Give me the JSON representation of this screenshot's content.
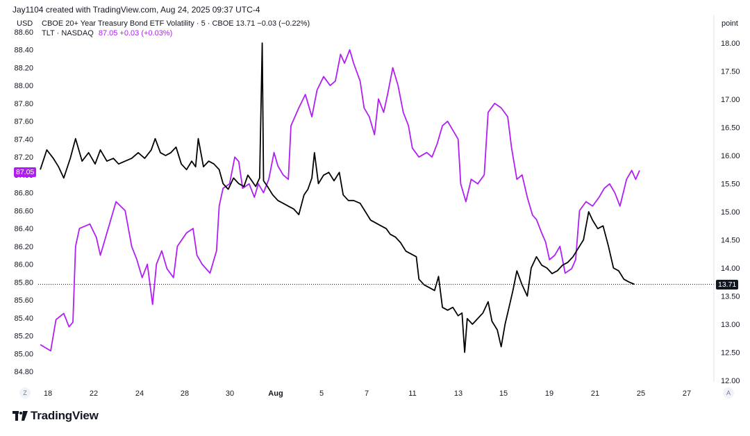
{
  "header": {
    "credit": "Jay1104 created with TradingView.com, Aug 24, 2025 09:37 UTC-4"
  },
  "legend": {
    "series1": "CBOE 20+ Year Treasury Bond ETF Volatility · 5 · CBOE  13.71  −0.03 (−0.22%)",
    "series2_name": "TLT · NASDAQ",
    "series2_value": "87.05  +0.03 (+0.03%)"
  },
  "axes": {
    "left_unit": "USD",
    "right_unit": "point",
    "left_badge": "87.05",
    "right_badge": "13.71"
  },
  "buttons": {
    "z_label": "Z",
    "a_label": "A"
  },
  "brand": {
    "name": "TradingView"
  },
  "colors": {
    "tlt": "#b01ef3",
    "vol": "#000000",
    "grid_text": "#131722"
  },
  "chart_data": {
    "type": "line",
    "x_tick_labels": [
      "18",
      "22",
      "24",
      "28",
      "30",
      "Aug",
      "5",
      "7",
      "11",
      "13",
      "15",
      "19",
      "21",
      "25",
      "27"
    ],
    "left_axis": {
      "label": "USD",
      "ticks": [
        "88.60",
        "88.40",
        "88.20",
        "88.00",
        "87.80",
        "87.60",
        "87.40",
        "87.20",
        "87.00",
        "86.80",
        "86.60",
        "86.40",
        "86.20",
        "86.00",
        "85.80",
        "85.60",
        "85.40",
        "85.20",
        "85.00",
        "84.80"
      ],
      "range": [
        84.8,
        88.6
      ]
    },
    "right_axis": {
      "label": "point",
      "ticks": [
        "18.00",
        "17.50",
        "17.00",
        "16.50",
        "16.00",
        "15.50",
        "15.00",
        "14.50",
        "14.00",
        "13.50",
        "13.00",
        "12.50",
        "12.00"
      ],
      "range": [
        12.0,
        18.0
      ]
    },
    "series": [
      {
        "name": "TLT · NASDAQ",
        "axis": "left",
        "color": "#b01ef3",
        "points": [
          [
            0,
            85.1
          ],
          [
            0.8,
            85.03
          ],
          [
            1.2,
            85.38
          ],
          [
            1.8,
            85.45
          ],
          [
            2.2,
            85.3
          ],
          [
            2.5,
            85.35
          ],
          [
            2.7,
            86.2
          ],
          [
            3.0,
            86.4
          ],
          [
            3.8,
            86.45
          ],
          [
            4.3,
            86.3
          ],
          [
            4.6,
            86.1
          ],
          [
            5.2,
            86.4
          ],
          [
            5.8,
            86.7
          ],
          [
            6.5,
            86.6
          ],
          [
            7.0,
            86.2
          ],
          [
            7.4,
            86.05
          ],
          [
            7.8,
            85.85
          ],
          [
            8.2,
            86.0
          ],
          [
            8.6,
            85.55
          ],
          [
            8.9,
            86.0
          ],
          [
            9.3,
            86.15
          ],
          [
            9.7,
            85.95
          ],
          [
            10.2,
            85.85
          ],
          [
            10.5,
            86.2
          ],
          [
            11.2,
            86.35
          ],
          [
            11.7,
            86.4
          ],
          [
            12.0,
            86.1
          ],
          [
            12.4,
            86.0
          ],
          [
            13.0,
            85.9
          ],
          [
            13.5,
            86.15
          ],
          [
            13.7,
            86.65
          ],
          [
            14.0,
            86.85
          ],
          [
            14.5,
            86.9
          ],
          [
            14.9,
            87.2
          ],
          [
            15.2,
            87.15
          ],
          [
            15.5,
            86.85
          ],
          [
            16.0,
            86.9
          ],
          [
            16.4,
            86.75
          ],
          [
            16.7,
            86.9
          ],
          [
            17.1,
            86.8
          ],
          [
            17.5,
            86.95
          ],
          [
            17.9,
            87.25
          ],
          [
            18.2,
            87.1
          ],
          [
            18.6,
            87.0
          ],
          [
            19.0,
            86.95
          ],
          [
            19.2,
            87.55
          ],
          [
            19.8,
            87.75
          ],
          [
            20.3,
            87.9
          ],
          [
            20.8,
            87.65
          ],
          [
            21.2,
            87.95
          ],
          [
            21.7,
            88.1
          ],
          [
            22.2,
            88.0
          ],
          [
            22.6,
            88.05
          ],
          [
            23.0,
            88.35
          ],
          [
            23.3,
            88.25
          ],
          [
            23.7,
            88.4
          ],
          [
            24.0,
            88.25
          ],
          [
            24.5,
            88.05
          ],
          [
            24.8,
            87.75
          ],
          [
            25.2,
            87.65
          ],
          [
            25.6,
            87.45
          ],
          [
            25.9,
            87.85
          ],
          [
            26.3,
            87.7
          ],
          [
            26.6,
            87.9
          ],
          [
            27.0,
            88.2
          ],
          [
            27.4,
            88.0
          ],
          [
            27.8,
            87.7
          ],
          [
            28.2,
            87.55
          ],
          [
            28.5,
            87.3
          ],
          [
            29.0,
            87.2
          ],
          [
            29.6,
            87.25
          ],
          [
            30.0,
            87.2
          ],
          [
            30.4,
            87.35
          ],
          [
            30.8,
            87.55
          ],
          [
            31.2,
            87.6
          ],
          [
            31.6,
            87.5
          ],
          [
            32.0,
            87.4
          ],
          [
            32.2,
            86.9
          ],
          [
            32.6,
            86.7
          ],
          [
            33.0,
            86.95
          ],
          [
            33.5,
            86.9
          ],
          [
            34.0,
            87.0
          ],
          [
            34.3,
            87.7
          ],
          [
            34.8,
            87.8
          ],
          [
            35.3,
            87.75
          ],
          [
            35.8,
            87.65
          ],
          [
            36.1,
            87.3
          ],
          [
            36.5,
            86.95
          ],
          [
            36.9,
            87.0
          ],
          [
            37.3,
            86.75
          ],
          [
            37.7,
            86.55
          ],
          [
            38.0,
            86.5
          ],
          [
            38.4,
            86.35
          ],
          [
            38.7,
            86.25
          ],
          [
            39.0,
            86.05
          ],
          [
            39.4,
            86.1
          ],
          [
            39.8,
            86.2
          ],
          [
            40.2,
            85.9
          ],
          [
            40.7,
            85.95
          ],
          [
            41.0,
            86.05
          ],
          [
            41.3,
            86.6
          ],
          [
            41.8,
            86.7
          ],
          [
            42.3,
            86.65
          ],
          [
            42.8,
            86.75
          ],
          [
            43.2,
            86.85
          ],
          [
            43.6,
            86.9
          ],
          [
            44.0,
            86.8
          ],
          [
            44.4,
            86.65
          ],
          [
            44.9,
            86.95
          ],
          [
            45.3,
            87.05
          ],
          [
            45.6,
            86.95
          ],
          [
            45.9,
            87.05
          ]
        ]
      },
      {
        "name": "CBOE 20+ Year Treasury Bond ETF Volatility",
        "axis": "right",
        "color": "#000000",
        "points": [
          [
            0,
            15.75
          ],
          [
            0.5,
            16.1
          ],
          [
            1.0,
            15.95
          ],
          [
            1.4,
            15.8
          ],
          [
            1.8,
            15.6
          ],
          [
            2.3,
            15.95
          ],
          [
            2.7,
            16.3
          ],
          [
            3.2,
            15.9
          ],
          [
            3.7,
            16.05
          ],
          [
            4.2,
            15.85
          ],
          [
            4.6,
            16.1
          ],
          [
            5.1,
            15.9
          ],
          [
            5.6,
            15.95
          ],
          [
            6.0,
            15.85
          ],
          [
            6.5,
            15.9
          ],
          [
            7.0,
            15.95
          ],
          [
            7.5,
            16.05
          ],
          [
            8.0,
            15.95
          ],
          [
            8.5,
            16.1
          ],
          [
            8.8,
            16.3
          ],
          [
            9.2,
            16.05
          ],
          [
            9.6,
            16.0
          ],
          [
            10.0,
            16.05
          ],
          [
            10.4,
            16.15
          ],
          [
            10.8,
            15.85
          ],
          [
            11.2,
            15.75
          ],
          [
            11.6,
            15.9
          ],
          [
            11.9,
            15.8
          ],
          [
            12.1,
            16.3
          ],
          [
            12.5,
            15.8
          ],
          [
            12.9,
            15.9
          ],
          [
            13.3,
            15.85
          ],
          [
            13.7,
            15.75
          ],
          [
            14.0,
            15.5
          ],
          [
            14.4,
            15.4
          ],
          [
            14.8,
            15.6
          ],
          [
            15.2,
            15.5
          ],
          [
            15.6,
            15.45
          ],
          [
            15.9,
            15.65
          ],
          [
            16.2,
            15.55
          ],
          [
            16.5,
            15.45
          ],
          [
            16.8,
            15.6
          ],
          [
            17.0,
            18.0
          ],
          [
            17.1,
            15.55
          ],
          [
            17.4,
            15.45
          ],
          [
            17.8,
            15.3
          ],
          [
            18.2,
            15.2
          ],
          [
            18.6,
            15.15
          ],
          [
            19.0,
            15.1
          ],
          [
            19.4,
            15.05
          ],
          [
            19.8,
            14.95
          ],
          [
            20.2,
            15.3
          ],
          [
            20.5,
            15.4
          ],
          [
            20.8,
            15.6
          ],
          [
            21.0,
            16.05
          ],
          [
            21.3,
            15.5
          ],
          [
            21.7,
            15.65
          ],
          [
            22.1,
            15.7
          ],
          [
            22.5,
            15.55
          ],
          [
            22.9,
            15.7
          ],
          [
            23.2,
            15.3
          ],
          [
            23.6,
            15.2
          ],
          [
            24.0,
            15.2
          ],
          [
            24.5,
            15.15
          ],
          [
            24.9,
            15.0
          ],
          [
            25.3,
            14.85
          ],
          [
            25.7,
            14.8
          ],
          [
            26.1,
            14.75
          ],
          [
            26.5,
            14.7
          ],
          [
            26.8,
            14.6
          ],
          [
            27.2,
            14.55
          ],
          [
            27.6,
            14.45
          ],
          [
            28.0,
            14.3
          ],
          [
            28.4,
            14.25
          ],
          [
            28.8,
            14.2
          ],
          [
            29.0,
            13.8
          ],
          [
            29.4,
            13.7
          ],
          [
            29.8,
            13.65
          ],
          [
            30.2,
            13.6
          ],
          [
            30.5,
            13.85
          ],
          [
            30.8,
            13.3
          ],
          [
            31.2,
            13.25
          ],
          [
            31.6,
            13.3
          ],
          [
            32.0,
            13.15
          ],
          [
            32.3,
            13.2
          ],
          [
            32.5,
            12.5
          ],
          [
            32.7,
            13.1
          ],
          [
            33.1,
            13.0
          ],
          [
            33.5,
            13.1
          ],
          [
            33.9,
            13.2
          ],
          [
            34.3,
            13.4
          ],
          [
            34.6,
            13.05
          ],
          [
            35.0,
            12.9
          ],
          [
            35.3,
            12.6
          ],
          [
            35.6,
            13.0
          ],
          [
            35.9,
            13.3
          ],
          [
            36.2,
            13.6
          ],
          [
            36.5,
            13.95
          ],
          [
            36.9,
            13.7
          ],
          [
            37.3,
            13.5
          ],
          [
            37.6,
            14.0
          ],
          [
            38.0,
            14.2
          ],
          [
            38.4,
            14.05
          ],
          [
            38.8,
            14.0
          ],
          [
            39.2,
            13.9
          ],
          [
            39.6,
            13.95
          ],
          [
            40.0,
            14.05
          ],
          [
            40.4,
            14.1
          ],
          [
            40.8,
            14.2
          ],
          [
            41.2,
            14.35
          ],
          [
            41.6,
            14.5
          ],
          [
            42.0,
            15.0
          ],
          [
            42.3,
            14.85
          ],
          [
            42.7,
            14.7
          ],
          [
            43.1,
            14.75
          ],
          [
            43.5,
            14.4
          ],
          [
            43.9,
            14.0
          ],
          [
            44.3,
            13.95
          ],
          [
            44.7,
            13.8
          ],
          [
            45.1,
            13.75
          ],
          [
            45.5,
            13.71
          ]
        ]
      }
    ]
  }
}
